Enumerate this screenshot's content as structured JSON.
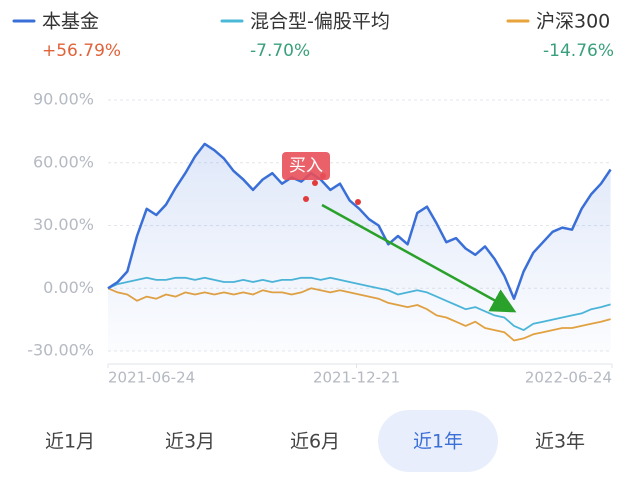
{
  "chart_data": {
    "type": "line",
    "x": [
      "2021-06-24",
      "2021-07-01",
      "2021-07-08",
      "2021-07-15",
      "2021-07-22",
      "2021-07-29",
      "2021-08-05",
      "2021-08-12",
      "2021-08-19",
      "2021-08-26",
      "2021-09-02",
      "2021-09-09",
      "2021-09-16",
      "2021-09-23",
      "2021-09-30",
      "2021-10-07",
      "2021-10-14",
      "2021-10-21",
      "2021-10-28",
      "2021-11-04",
      "2021-11-11",
      "2021-11-18",
      "2021-11-25",
      "2021-12-02",
      "2021-12-09",
      "2021-12-16",
      "2021-12-23",
      "2021-12-30",
      "2022-01-06",
      "2022-01-13",
      "2022-01-20",
      "2022-01-27",
      "2022-02-03",
      "2022-02-10",
      "2022-02-17",
      "2022-02-24",
      "2022-03-03",
      "2022-03-10",
      "2022-03-17",
      "2022-03-24",
      "2022-03-31",
      "2022-04-07",
      "2022-04-14",
      "2022-04-21",
      "2022-04-28",
      "2022-05-05",
      "2022-05-12",
      "2022-05-19",
      "2022-05-26",
      "2022-06-02",
      "2022-06-09",
      "2022-06-16",
      "2022-06-23"
    ],
    "series": [
      {
        "name": "本基金",
        "color": "#3a6fd8",
        "change_label": "+56.79%",
        "change_color": "#e0633a",
        "area": true,
        "values": [
          0,
          3,
          8,
          25,
          38,
          35,
          40,
          48,
          55,
          63,
          69,
          66,
          62,
          56,
          52,
          47,
          52,
          55,
          50,
          53,
          51,
          55,
          52,
          47,
          50,
          42,
          38,
          33,
          30,
          21,
          25,
          21,
          36,
          39,
          31,
          22,
          24,
          19,
          16,
          20,
          14,
          6,
          -5,
          8,
          17,
          22,
          27,
          29,
          28,
          38,
          45,
          50,
          56.79
        ]
      },
      {
        "name": "混合型-偏股平均",
        "color": "#4cb8d8",
        "change_label": "-7.70%",
        "change_color": "#3aa07a",
        "area": false,
        "values": [
          0,
          2,
          3,
          4,
          5,
          4,
          4,
          5,
          5,
          4,
          5,
          4,
          3,
          3,
          4,
          3,
          4,
          3,
          4,
          4,
          5,
          5,
          4,
          5,
          4,
          3,
          2,
          1,
          0,
          -1,
          -3,
          -2,
          -1,
          -2,
          -4,
          -6,
          -8,
          -10,
          -9,
          -11,
          -13,
          -14,
          -18,
          -20,
          -17,
          -16,
          -15,
          -14,
          -13,
          -12,
          -10,
          -9,
          -7.7
        ]
      },
      {
        "name": "沪深300",
        "color": "#e8a33a",
        "change_label": "-14.76%",
        "change_color": "#3aa07a",
        "area": false,
        "values": [
          0,
          -2,
          -3,
          -6,
          -4,
          -5,
          -3,
          -4,
          -2,
          -3,
          -2,
          -3,
          -2,
          -3,
          -2,
          -3,
          -1,
          -2,
          -2,
          -3,
          -2,
          0,
          -1,
          -2,
          -1,
          -2,
          -3,
          -4,
          -5,
          -7,
          -8,
          -9,
          -8,
          -10,
          -13,
          -14,
          -16,
          -18,
          -16,
          -19,
          -20,
          -21,
          -25,
          -24,
          -22,
          -21,
          -20,
          -19,
          -19,
          -18,
          -17,
          -16,
          -14.76
        ]
      }
    ],
    "xlim": [
      "2021-06-24",
      "2022-06-24"
    ],
    "xticks": [
      "2021-06-24",
      "2021-12-21",
      "2022-06-24"
    ],
    "ylim": [
      -30,
      90
    ],
    "yticks": [
      {
        "value": -30,
        "label": "-30.00%"
      },
      {
        "value": 0,
        "label": "0.00%"
      },
      {
        "value": 30,
        "label": "30.00%"
      },
      {
        "value": 60,
        "label": "60.00%"
      },
      {
        "value": 90,
        "label": "90.00%"
      }
    ],
    "grid": true,
    "annotation": "买入",
    "period_buttons": [
      "近1月",
      "近3月",
      "近6月",
      "近1年",
      "近3年"
    ],
    "selected_period": "近1年"
  }
}
